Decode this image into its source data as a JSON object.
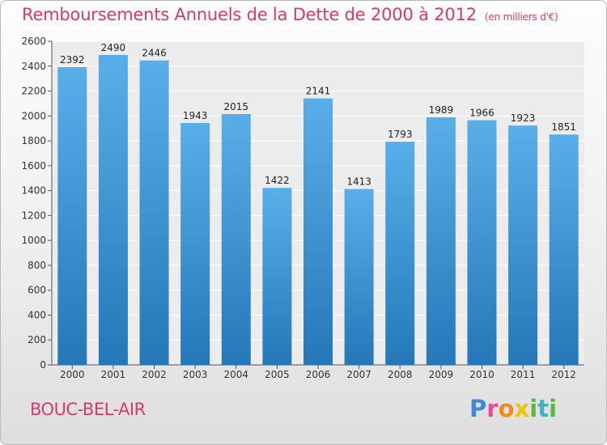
{
  "title": "Remboursements Annuels de la Dette de 2000 à 2012",
  "title_unit": "(en milliers d'€)",
  "commune": "BOUC-BEL-AIR",
  "logo": "Proxiti",
  "colors": {
    "title": "#d63a6b",
    "bar_top": "#5aaee8",
    "bar_bottom": "#2478b8"
  },
  "chart_data": {
    "type": "bar",
    "title": "Remboursements Annuels de la Dette de 2000 à 2012",
    "categories": [
      "2000",
      "2001",
      "2002",
      "2003",
      "2004",
      "2005",
      "2006",
      "2007",
      "2008",
      "2009",
      "2010",
      "2011",
      "2012"
    ],
    "values": [
      2392,
      2490,
      2446,
      1943,
      2015,
      1422,
      2141,
      1413,
      1793,
      1989,
      1966,
      1923,
      1851
    ],
    "ylim": [
      0,
      2600
    ],
    "yticks": [
      0,
      200,
      400,
      600,
      800,
      1000,
      1200,
      1400,
      1600,
      1800,
      2000,
      2200,
      2400,
      2600
    ],
    "grid": true
  }
}
